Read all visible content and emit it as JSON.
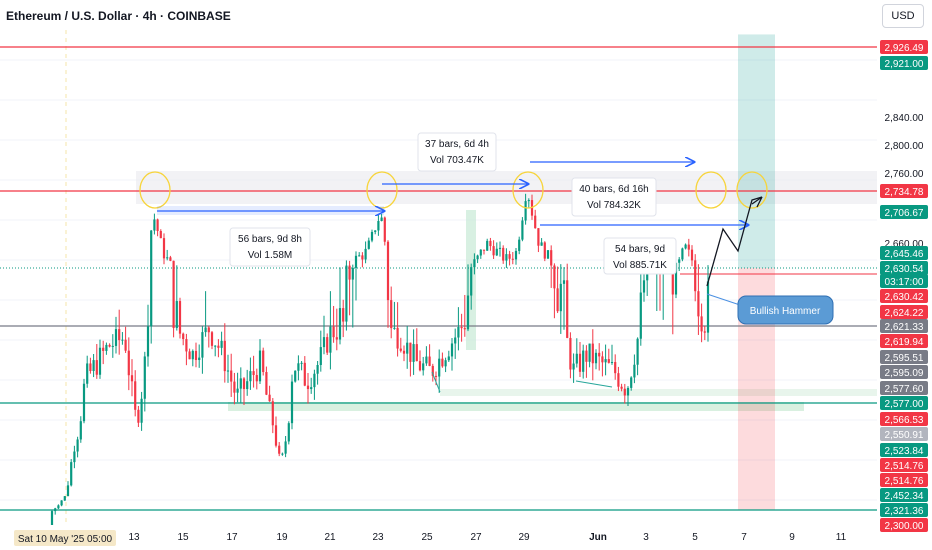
{
  "header": {
    "title": "Ethereum / U.S. Dollar · 4h · COINBASE",
    "currency_button": "USD"
  },
  "chart_data": {
    "type": "candlestick",
    "symbol": "ETHUSD",
    "timeframe": "4h",
    "exchange": "COINBASE",
    "ylim": [
      2290,
      2975
    ],
    "price_labels": [
      {
        "value": "2,926.49",
        "color": "#f23645"
      },
      {
        "value": "2,921.00",
        "color": "#089981"
      },
      {
        "value": "2,840.00",
        "color": null
      },
      {
        "value": "2,800.00",
        "color": null
      },
      {
        "value": "2,760.00",
        "color": null
      },
      {
        "value": "2,734.78",
        "color": "#f23645"
      },
      {
        "value": "2,706.67",
        "color": "#089981"
      },
      {
        "value": "2,660.00",
        "color": null
      },
      {
        "value": "2,645.46",
        "color": "#089981"
      },
      {
        "value": "2,630.54",
        "color": "#089981"
      },
      {
        "value": "03:17:00",
        "color": "#089981"
      },
      {
        "value": "2,630.42",
        "color": "#f23645"
      },
      {
        "value": "2,624.22",
        "color": "#f23645"
      },
      {
        "value": "2,621.33",
        "color": "#787b86"
      },
      {
        "value": "2,619.94",
        "color": "#f23645"
      },
      {
        "value": "2,595.51",
        "color": "#787b86"
      },
      {
        "value": "2,595.09",
        "color": "#787b86"
      },
      {
        "value": "2,577.60",
        "color": "#787b86"
      },
      {
        "value": "2,577.00",
        "color": "#089981"
      },
      {
        "value": "2,566.53",
        "color": "#f23645"
      },
      {
        "value": "2,550.91",
        "color": "#b2b5be"
      },
      {
        "value": "2,523.84",
        "color": "#089981"
      },
      {
        "value": "2,514.76",
        "color": "#f23645"
      },
      {
        "value": "2,514.76",
        "color": "#f23645"
      },
      {
        "value": "2,452.34",
        "color": "#089981"
      },
      {
        "value": "2,321.36",
        "color": "#089981"
      },
      {
        "value": "2,300.00",
        "color": "#f23645"
      }
    ],
    "x_ticks": [
      "13",
      "15",
      "17",
      "19",
      "21",
      "23",
      "25",
      "27",
      "29",
      "Jun",
      "3",
      "5",
      "7",
      "9",
      "11"
    ],
    "crosshair_date": "Sat 10 May '25 05:00",
    "horizontal_levels": [
      {
        "price": 2926.49,
        "color": "#f23645"
      },
      {
        "price": 2734.78,
        "color": "#f23645"
      },
      {
        "price": 2621.33,
        "color": "#787b86"
      },
      {
        "price": 2577.0,
        "color": "#089981"
      },
      {
        "price": 2321.36,
        "color": "#089981"
      },
      {
        "price": 2630.54,
        "color": "#089981",
        "style": "dotted"
      }
    ],
    "measurements": [
      {
        "bars": "56 bars, 9d 8h",
        "vol": "Vol 1.58M"
      },
      {
        "bars": "37 bars, 6d 4h",
        "vol": "Vol 703.47K"
      },
      {
        "bars": "40 bars, 6d 16h",
        "vol": "Vol 784.32K"
      },
      {
        "bars": "54 bars, 9d",
        "vol": "Vol 885.71K"
      }
    ],
    "annotation": "Bullish Hammer",
    "position": {
      "entry": 2630.54,
      "target": 2921.0,
      "stop": 2321.36
    },
    "colors": {
      "up": "#089981",
      "down": "#f23645",
      "arrow": "#2962ff",
      "circle": "#f7d43a"
    }
  }
}
